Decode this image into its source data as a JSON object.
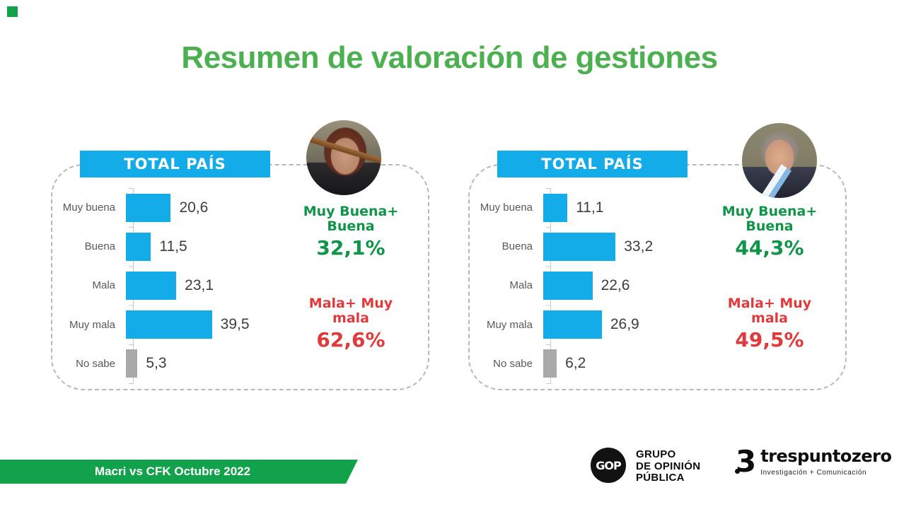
{
  "title": "Resumen de valoración de gestiones",
  "colors": {
    "title_green": "#4CAF50",
    "banner_green": "#12A24B",
    "summary_green": "#109449",
    "summary_red": "#E03A3C",
    "bar_cyan": "#14ACE8",
    "bar_gray": "#A9A9A9",
    "header_box_cyan": "#14ACE8"
  },
  "chart_data": [
    {
      "type": "bar",
      "orientation": "horizontal",
      "subject": "CFK",
      "header": "TOTAL PAÍS",
      "categories": [
        "Muy buena",
        "Buena",
        "Mala",
        "Muy mala",
        "No sabe"
      ],
      "values": [
        20.6,
        11.5,
        23.1,
        39.5,
        5.3
      ],
      "value_labels": [
        "20,6",
        "11,5",
        "23,1",
        "39,5",
        "5,3"
      ],
      "xlim": [
        0,
        45
      ],
      "grid": false,
      "bar_colors": [
        "#14ACE8",
        "#14ACE8",
        "#14ACE8",
        "#14ACE8",
        "#A9A9A9"
      ],
      "summary_positive": {
        "label": "Muy Buena+ Buena",
        "value": "32,1%",
        "color": "#109449"
      },
      "summary_negative": {
        "label": "Mala+ Muy mala",
        "value": "62,6%",
        "color": "#E03A3C"
      }
    },
    {
      "type": "bar",
      "orientation": "horizontal",
      "subject": "Macri",
      "header": "TOTAL PAÍS",
      "categories": [
        "Muy buena",
        "Buena",
        "Mala",
        "Muy mala",
        "No sabe"
      ],
      "values": [
        11.1,
        33.2,
        22.6,
        26.9,
        6.2
      ],
      "value_labels": [
        "11,1",
        "33,2",
        "22,6",
        "26,9",
        "6,2"
      ],
      "xlim": [
        0,
        45
      ],
      "grid": false,
      "bar_colors": [
        "#14ACE8",
        "#14ACE8",
        "#14ACE8",
        "#14ACE8",
        "#A9A9A9"
      ],
      "summary_positive": {
        "label": "Muy Buena+ Buena",
        "value": "44,3%",
        "color": "#109449"
      },
      "summary_negative": {
        "label": "Mala+ Muy mala",
        "value": "49,5%",
        "color": "#E03A3C"
      }
    }
  ],
  "footer": {
    "banner_label": "Macri vs CFK Octubre 2022"
  },
  "logos": {
    "gop": {
      "monogram": "GOP",
      "line1": "GRUPO",
      "line2": "DE OPINIÓN",
      "line3": "PÚBLICA"
    },
    "trespuntozero": {
      "numeral": "3",
      "name": "trespuntozero",
      "tagline": "Investigación + Comunicación"
    }
  }
}
